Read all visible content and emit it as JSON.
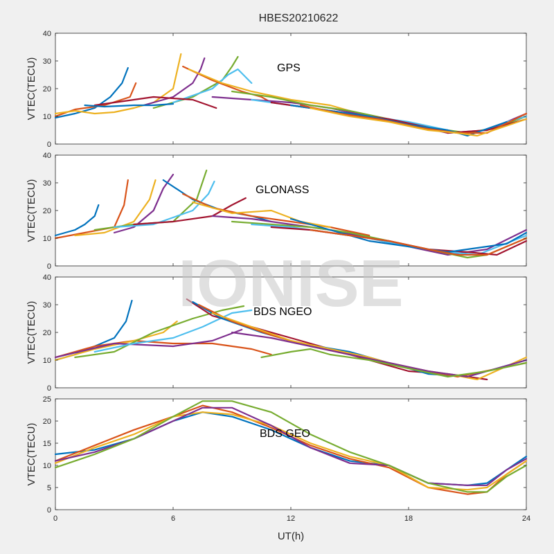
{
  "figure": {
    "title": "HBES20210622",
    "xlabel": "UT(h)",
    "watermark": "IONISE",
    "x_ticks": [
      "0",
      "6",
      "12",
      "18",
      "24"
    ],
    "xlim": [
      0,
      24
    ]
  },
  "colors": [
    "#0072bd",
    "#d95319",
    "#edb120",
    "#7e2f8e",
    "#77ac30",
    "#4dbeee",
    "#a2142f"
  ],
  "chart_data": [
    {
      "type": "line",
      "panel": "GPS",
      "title": "GPS",
      "ylabel": "VTEC(TECU)",
      "ylim": [
        0,
        40
      ],
      "y_ticks": [
        "0",
        "10",
        "20",
        "30",
        "40"
      ],
      "series": [
        {
          "x": [
            0,
            1,
            2,
            2.8,
            3.4,
            3.7
          ],
          "y": [
            9.5,
            11,
            13,
            17,
            22,
            27.5
          ]
        },
        {
          "x": [
            0,
            1,
            2.5,
            3.8,
            4.1
          ],
          "y": [
            10,
            12.5,
            14,
            17,
            22
          ]
        },
        {
          "x": [
            0,
            1,
            2,
            3,
            4,
            5,
            6,
            6.4
          ],
          "y": [
            11,
            12,
            11,
            11.5,
            13,
            15,
            20,
            32.5
          ]
        },
        {
          "x": [
            4.5,
            6,
            7,
            7.4,
            7.6
          ],
          "y": [
            14,
            17,
            22,
            27,
            31
          ]
        },
        {
          "x": [
            5,
            7,
            8.5,
            9,
            9.3
          ],
          "y": [
            13,
            17,
            23,
            28,
            31.5
          ]
        },
        {
          "x": [
            6,
            8,
            8.8,
            9.3,
            10
          ],
          "y": [
            15,
            20,
            25,
            27,
            22
          ]
        },
        {
          "x": [
            2,
            3,
            5,
            7,
            8.2
          ],
          "y": [
            14,
            15,
            17,
            16,
            13
          ]
        },
        {
          "x": [
            1.5,
            2.5,
            4,
            5,
            6
          ],
          "y": [
            14,
            13.5,
            14,
            14,
            14.5
          ]
        },
        {
          "x": [
            6.5,
            8,
            9.5,
            10.5,
            11
          ],
          "y": [
            28,
            23,
            19,
            17,
            15
          ]
        },
        {
          "x": [
            6.8,
            8.5,
            10,
            12,
            14,
            15
          ],
          "y": [
            27,
            22,
            19,
            16,
            14,
            12
          ]
        },
        {
          "x": [
            8,
            10,
            12,
            14,
            16,
            18,
            20,
            22,
            24
          ],
          "y": [
            17,
            16,
            15,
            13,
            10,
            7,
            4,
            5,
            11
          ]
        },
        {
          "x": [
            9,
            11,
            13,
            15,
            17,
            19,
            21,
            22.5,
            24
          ],
          "y": [
            19,
            17,
            14,
            12,
            9,
            6,
            4,
            6,
            10
          ]
        },
        {
          "x": [
            10,
            12,
            14,
            16,
            18,
            20,
            21,
            23,
            24
          ],
          "y": [
            16,
            14,
            12,
            10,
            8,
            5,
            3,
            8,
            10
          ]
        },
        {
          "x": [
            11,
            13,
            15,
            17,
            19,
            20,
            22,
            24
          ],
          "y": [
            15,
            13,
            11,
            9,
            6,
            4,
            5,
            9
          ]
        },
        {
          "x": [
            12,
            14,
            16,
            18,
            20,
            21,
            23
          ],
          "y": [
            14,
            12,
            10,
            7,
            5,
            3,
            8
          ]
        },
        {
          "x": [
            12.5,
            14.5,
            16.5,
            18.5,
            20.5,
            22,
            24
          ],
          "y": [
            14,
            11,
            9,
            6,
            4,
            4,
            11
          ]
        },
        {
          "x": [
            13,
            15,
            17,
            19,
            20.5,
            21.5,
            24
          ],
          "y": [
            13,
            10,
            8,
            5,
            4,
            3,
            9
          ]
        }
      ]
    },
    {
      "type": "line",
      "panel": "GLONASS",
      "title": "GLONASS",
      "ylabel": "VTEC(TECU)",
      "ylim": [
        0,
        40
      ],
      "y_ticks": [
        "0",
        "10",
        "20",
        "30",
        "40"
      ],
      "series": [
        {
          "x": [
            0,
            1,
            1.5,
            2,
            2.2
          ],
          "y": [
            11,
            13,
            15,
            18,
            22
          ]
        },
        {
          "x": [
            0,
            1.5,
            3,
            3.5,
            3.7
          ],
          "y": [
            10,
            12,
            14,
            22,
            31
          ]
        },
        {
          "x": [
            1,
            2.5,
            4,
            4.8,
            5.1
          ],
          "y": [
            11,
            12,
            16,
            24,
            31
          ]
        },
        {
          "x": [
            3,
            4,
            5,
            5.5,
            6
          ],
          "y": [
            12,
            14,
            20,
            28,
            33
          ]
        },
        {
          "x": [
            2,
            4,
            6,
            7.2,
            7.7
          ],
          "y": [
            13,
            15,
            16,
            24,
            34.5
          ]
        },
        {
          "x": [
            3,
            5,
            7,
            7.8,
            8.1
          ],
          "y": [
            14,
            15,
            20,
            26,
            30.5
          ]
        },
        {
          "x": [
            4,
            6,
            8,
            9,
            9.7
          ],
          "y": [
            15,
            16,
            18,
            22,
            24.5
          ]
        },
        {
          "x": [
            5.5,
            7,
            8.5,
            10,
            11
          ],
          "y": [
            31,
            24,
            20,
            18,
            16
          ]
        },
        {
          "x": [
            6.5,
            8,
            10,
            12,
            14,
            16
          ],
          "y": [
            26,
            21,
            18,
            16,
            14,
            11
          ]
        },
        {
          "x": [
            7,
            9,
            11,
            12.5,
            14
          ],
          "y": [
            23,
            19,
            20,
            16,
            14
          ]
        },
        {
          "x": [
            8,
            10,
            12,
            14,
            16,
            18,
            20,
            22,
            24
          ],
          "y": [
            18,
            17,
            15,
            13,
            10,
            7,
            4,
            6,
            13
          ]
        },
        {
          "x": [
            9,
            11,
            13,
            15,
            17,
            19,
            21,
            22,
            24
          ],
          "y": [
            16,
            15,
            14,
            12,
            9,
            6,
            3,
            4,
            10
          ]
        },
        {
          "x": [
            10,
            12,
            14,
            16,
            18,
            20,
            21.5,
            24
          ],
          "y": [
            15,
            14,
            12,
            10,
            7,
            5,
            4,
            11
          ]
        },
        {
          "x": [
            11,
            13,
            15,
            17,
            19,
            21,
            22.5,
            24
          ],
          "y": [
            14,
            13,
            11,
            9,
            6,
            5,
            4,
            9
          ]
        },
        {
          "x": [
            12,
            14,
            16,
            18,
            20,
            21,
            23,
            24
          ],
          "y": [
            17,
            13,
            9,
            7,
            5,
            6,
            8,
            12
          ]
        },
        {
          "x": [
            13,
            15,
            17,
            19,
            20.5,
            22,
            24
          ],
          "y": [
            13,
            11,
            9,
            6,
            4,
            4,
            10
          ]
        }
      ]
    },
    {
      "type": "line",
      "panel": "BDS NGEO",
      "title": "BDS NGEO",
      "ylabel": "VTEC(TECU)",
      "ylim": [
        0,
        40
      ],
      "y_ticks": [
        "0",
        "10",
        "20",
        "30",
        "40"
      ],
      "series": [
        {
          "x": [
            0,
            1,
            2,
            3,
            3.6,
            3.9
          ],
          "y": [
            10,
            12,
            15,
            18,
            24,
            31.5
          ]
        },
        {
          "x": [
            0,
            2,
            4,
            6,
            8,
            10,
            11
          ],
          "y": [
            11,
            15,
            17,
            16,
            16,
            14,
            12
          ]
        },
        {
          "x": [
            0,
            2,
            4,
            5.5,
            6.2
          ],
          "y": [
            10,
            14,
            17,
            20,
            24
          ]
        },
        {
          "x": [
            0,
            3,
            6,
            8,
            9.5
          ],
          "y": [
            11,
            16,
            15,
            17,
            21
          ]
        },
        {
          "x": [
            1,
            3,
            5,
            7,
            8.5,
            9.6
          ],
          "y": [
            11,
            13,
            20,
            25,
            28,
            29.5
          ]
        },
        {
          "x": [
            2,
            4,
            6,
            7.5,
            9,
            10
          ],
          "y": [
            13,
            16,
            18,
            22,
            27,
            28
          ]
        },
        {
          "x": [
            6.7,
            8,
            10,
            12,
            14,
            16,
            18,
            20,
            22
          ],
          "y": [
            32,
            26,
            22,
            18,
            14,
            10,
            6,
            5,
            3
          ]
        },
        {
          "x": [
            7,
            8.5,
            10.5,
            12.5,
            15,
            17,
            19,
            21,
            24
          ],
          "y": [
            31,
            25,
            20,
            16,
            13,
            9,
            5,
            4,
            10
          ]
        },
        {
          "x": [
            7.3,
            9,
            11,
            13,
            15,
            17,
            19,
            20.5,
            24
          ],
          "y": [
            30,
            24,
            19,
            15,
            12,
            9,
            6,
            4,
            9
          ]
        },
        {
          "x": [
            8,
            10,
            12,
            14,
            16,
            18,
            20,
            21.5,
            24
          ],
          "y": [
            27,
            22,
            17,
            14,
            11,
            7,
            5,
            3,
            11
          ]
        },
        {
          "x": [
            9,
            11,
            13,
            15,
            17,
            19,
            21,
            23,
            24
          ],
          "y": [
            20,
            18,
            15,
            12,
            9,
            6,
            4,
            8,
            10
          ]
        },
        {
          "x": [
            10.5,
            12,
            13,
            14,
            16,
            18,
            20,
            22,
            24
          ],
          "y": [
            11,
            13,
            14,
            12,
            10,
            7,
            4,
            6,
            9
          ]
        }
      ]
    },
    {
      "type": "line",
      "panel": "BDS GEO",
      "title": "BDS GEO",
      "ylabel": "VTEC(TECU)",
      "ylim": [
        0,
        25
      ],
      "y_ticks": [
        "0",
        "5",
        "10",
        "15",
        "20",
        "25"
      ],
      "series": [
        {
          "x": [
            0,
            2,
            4,
            6,
            7.5,
            9,
            11,
            13,
            15,
            17,
            19,
            21,
            22,
            23,
            24
          ],
          "y": [
            12.5,
            13.5,
            16,
            20,
            22,
            21,
            18,
            14,
            11,
            10,
            6,
            5.5,
            6,
            9,
            12
          ]
        },
        {
          "x": [
            0,
            2,
            4,
            6,
            7.5,
            9,
            11,
            13,
            15,
            17,
            19,
            21,
            22,
            23,
            24
          ],
          "y": [
            11,
            14.5,
            18,
            21,
            23.5,
            22,
            18.5,
            14.5,
            11.5,
            9.5,
            5,
            3.5,
            4,
            8,
            11
          ]
        },
        {
          "x": [
            0,
            2,
            4,
            6,
            7.5,
            9,
            11,
            13,
            15,
            17,
            19,
            21,
            22,
            23,
            24
          ],
          "y": [
            10.5,
            14,
            17,
            21,
            22,
            21.5,
            19,
            15,
            12,
            10,
            5,
            4.5,
            5,
            8,
            11
          ]
        },
        {
          "x": [
            0,
            2,
            4,
            6,
            7.5,
            9,
            11,
            13,
            15,
            17,
            19,
            21,
            22,
            23,
            24
          ],
          "y": [
            11,
            13,
            16,
            20,
            23,
            23,
            19,
            14,
            10.5,
            10,
            6,
            5.5,
            5.5,
            9,
            11.5
          ]
        },
        {
          "x": [
            0,
            2,
            4,
            6,
            7.5,
            9,
            11,
            13,
            15,
            17,
            19,
            21,
            22,
            23,
            24
          ],
          "y": [
            9.5,
            12.5,
            16,
            21,
            24.5,
            24.5,
            22,
            17,
            13,
            10,
            6,
            4,
            4,
            7.5,
            10
          ]
        }
      ]
    }
  ]
}
